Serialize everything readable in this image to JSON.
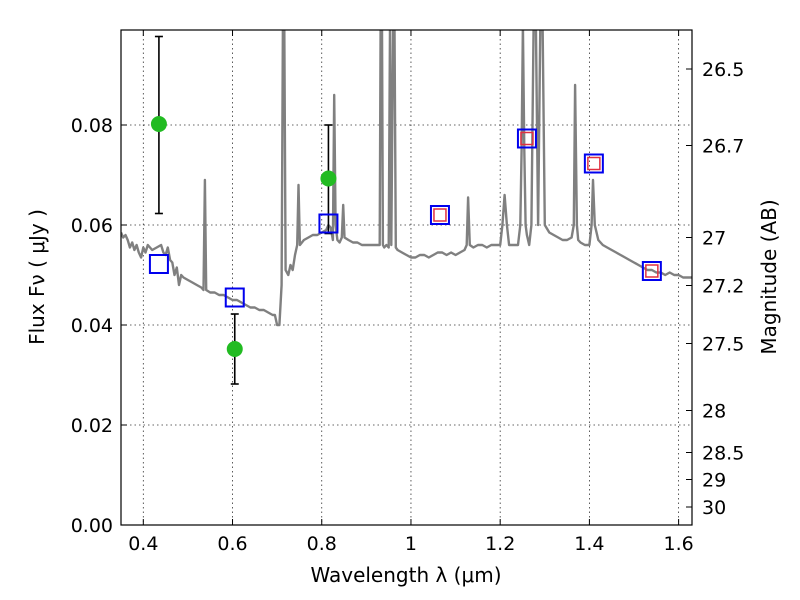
{
  "chart_data": {
    "type": "scatter",
    "xlabel": "Wavelength  λ (μm)",
    "ylabel": "Flux  Fν  ( μJy )",
    "ylabel_right": "Magnitude (AB)",
    "xlim": [
      0.35,
      1.63
    ],
    "ylim": [
      0.0,
      0.099
    ],
    "grid": true,
    "x_ticks": [
      {
        "value": 0.4,
        "label": "0.4"
      },
      {
        "value": 0.6,
        "label": "0.6"
      },
      {
        "value": 0.8,
        "label": "0.8"
      },
      {
        "value": 1.0,
        "label": "1"
      },
      {
        "value": 1.2,
        "label": "1.2"
      },
      {
        "value": 1.4,
        "label": "1.4"
      },
      {
        "value": 1.6,
        "label": "1.6"
      }
    ],
    "y_ticks": [
      {
        "value": 0.0,
        "label": "0.00"
      },
      {
        "value": 0.02,
        "label": "0.02"
      },
      {
        "value": 0.04,
        "label": "0.04"
      },
      {
        "value": 0.06,
        "label": "0.06"
      },
      {
        "value": 0.08,
        "label": "0.08"
      }
    ],
    "right_ticks": [
      {
        "flux": 0.0912,
        "label": "26.5"
      },
      {
        "flux": 0.0759,
        "label": "26.7"
      },
      {
        "flux": 0.0575,
        "label": "27"
      },
      {
        "flux": 0.0479,
        "label": "27.2"
      },
      {
        "flux": 0.0363,
        "label": "27.5"
      },
      {
        "flux": 0.0229,
        "label": "28"
      },
      {
        "flux": 0.0145,
        "label": "28.5"
      },
      {
        "flux": 0.0091,
        "label": "29"
      },
      {
        "flux": 0.0036,
        "label": "30"
      }
    ],
    "series": [
      {
        "kind": "line",
        "color": "#808080",
        "points": [
          [
            0.35,
            0.0585
          ],
          [
            0.355,
            0.0575
          ],
          [
            0.36,
            0.058
          ],
          [
            0.365,
            0.057
          ],
          [
            0.37,
            0.0555
          ],
          [
            0.375,
            0.0565
          ],
          [
            0.38,
            0.055
          ],
          [
            0.385,
            0.056
          ],
          [
            0.39,
            0.0545
          ],
          [
            0.395,
            0.0535
          ],
          [
            0.4,
            0.0555
          ],
          [
            0.405,
            0.0545
          ],
          [
            0.41,
            0.056
          ],
          [
            0.415,
            0.0555
          ],
          [
            0.42,
            0.055
          ],
          [
            0.43,
            0.0555
          ],
          [
            0.44,
            0.056
          ],
          [
            0.445,
            0.0545
          ],
          [
            0.45,
            0.054
          ],
          [
            0.455,
            0.0555
          ],
          [
            0.46,
            0.053
          ],
          [
            0.465,
            0.0525
          ],
          [
            0.47,
            0.05
          ],
          [
            0.475,
            0.0515
          ],
          [
            0.48,
            0.048
          ],
          [
            0.485,
            0.05
          ],
          [
            0.49,
            0.0495
          ],
          [
            0.5,
            0.049
          ],
          [
            0.51,
            0.0485
          ],
          [
            0.52,
            0.048
          ],
          [
            0.53,
            0.0475
          ],
          [
            0.535,
            0.047
          ],
          [
            0.538,
            0.069
          ],
          [
            0.541,
            0.047
          ],
          [
            0.55,
            0.0465
          ],
          [
            0.56,
            0.0465
          ],
          [
            0.57,
            0.046
          ],
          [
            0.58,
            0.046
          ],
          [
            0.59,
            0.0455
          ],
          [
            0.6,
            0.045
          ],
          [
            0.61,
            0.045
          ],
          [
            0.62,
            0.0445
          ],
          [
            0.63,
            0.044
          ],
          [
            0.64,
            0.0435
          ],
          [
            0.65,
            0.0435
          ],
          [
            0.66,
            0.043
          ],
          [
            0.67,
            0.043
          ],
          [
            0.68,
            0.0425
          ],
          [
            0.69,
            0.042
          ],
          [
            0.695,
            0.042
          ],
          [
            0.7,
            0.04
          ],
          [
            0.705,
            0.04
          ],
          [
            0.71,
            0.048
          ],
          [
            0.713,
            0.1
          ],
          [
            0.716,
            0.1
          ],
          [
            0.719,
            0.051
          ],
          [
            0.725,
            0.05
          ],
          [
            0.73,
            0.052
          ],
          [
            0.735,
            0.051
          ],
          [
            0.74,
            0.054
          ],
          [
            0.745,
            0.056
          ],
          [
            0.748,
            0.068
          ],
          [
            0.751,
            0.056
          ],
          [
            0.76,
            0.057
          ],
          [
            0.77,
            0.0575
          ],
          [
            0.78,
            0.058
          ],
          [
            0.79,
            0.058
          ],
          [
            0.8,
            0.0585
          ],
          [
            0.81,
            0.059
          ],
          [
            0.815,
            0.06
          ],
          [
            0.82,
            0.0595
          ],
          [
            0.825,
            0.057
          ],
          [
            0.828,
            0.086
          ],
          [
            0.831,
            0.06
          ],
          [
            0.835,
            0.057
          ],
          [
            0.84,
            0.0565
          ],
          [
            0.845,
            0.0575
          ],
          [
            0.848,
            0.064
          ],
          [
            0.851,
            0.0575
          ],
          [
            0.86,
            0.057
          ],
          [
            0.87,
            0.0565
          ],
          [
            0.88,
            0.0565
          ],
          [
            0.89,
            0.056
          ],
          [
            0.9,
            0.056
          ],
          [
            0.91,
            0.056
          ],
          [
            0.92,
            0.056
          ],
          [
            0.93,
            0.056
          ],
          [
            0.932,
            0.1
          ],
          [
            0.935,
            0.1
          ],
          [
            0.937,
            0.056
          ],
          [
            0.94,
            0.0555
          ],
          [
            0.945,
            0.056
          ],
          [
            0.95,
            0.0555
          ],
          [
            0.953,
            0.1
          ],
          [
            0.956,
            0.056
          ],
          [
            0.96,
            0.1
          ],
          [
            0.963,
            0.1
          ],
          [
            0.966,
            0.0555
          ],
          [
            0.97,
            0.055
          ],
          [
            0.98,
            0.0545
          ],
          [
            0.99,
            0.054
          ],
          [
            1.0,
            0.0535
          ],
          [
            1.01,
            0.0535
          ],
          [
            1.02,
            0.054
          ],
          [
            1.03,
            0.054
          ],
          [
            1.04,
            0.0535
          ],
          [
            1.05,
            0.054
          ],
          [
            1.06,
            0.0545
          ],
          [
            1.07,
            0.0545
          ],
          [
            1.08,
            0.054
          ],
          [
            1.09,
            0.0545
          ],
          [
            1.1,
            0.054
          ],
          [
            1.11,
            0.0545
          ],
          [
            1.12,
            0.055
          ],
          [
            1.125,
            0.056
          ],
          [
            1.128,
            0.0655
          ],
          [
            1.132,
            0.056
          ],
          [
            1.14,
            0.0555
          ],
          [
            1.15,
            0.056
          ],
          [
            1.16,
            0.056
          ],
          [
            1.17,
            0.0555
          ],
          [
            1.18,
            0.056
          ],
          [
            1.19,
            0.056
          ],
          [
            1.2,
            0.056
          ],
          [
            1.205,
            0.06
          ],
          [
            1.21,
            0.066
          ],
          [
            1.215,
            0.06
          ],
          [
            1.22,
            0.056
          ],
          [
            1.23,
            0.056
          ],
          [
            1.24,
            0.056
          ],
          [
            1.245,
            0.06
          ],
          [
            1.248,
            0.075
          ],
          [
            1.251,
            0.1
          ],
          [
            1.254,
            0.075
          ],
          [
            1.257,
            0.06
          ],
          [
            1.26,
            0.058
          ],
          [
            1.265,
            0.056
          ],
          [
            1.27,
            0.06
          ],
          [
            1.275,
            0.1
          ],
          [
            1.28,
            0.1
          ],
          [
            1.285,
            0.06
          ],
          [
            1.29,
            0.1
          ],
          [
            1.295,
            0.1
          ],
          [
            1.3,
            0.06
          ],
          [
            1.31,
            0.0585
          ],
          [
            1.32,
            0.058
          ],
          [
            1.33,
            0.0575
          ],
          [
            1.34,
            0.057
          ],
          [
            1.35,
            0.057
          ],
          [
            1.36,
            0.0575
          ],
          [
            1.365,
            0.06
          ],
          [
            1.368,
            0.088
          ],
          [
            1.372,
            0.06
          ],
          [
            1.375,
            0.057
          ],
          [
            1.38,
            0.0565
          ],
          [
            1.39,
            0.056
          ],
          [
            1.4,
            0.056
          ],
          [
            1.405,
            0.06
          ],
          [
            1.408,
            0.069
          ],
          [
            1.412,
            0.06
          ],
          [
            1.42,
            0.057
          ],
          [
            1.43,
            0.056
          ],
          [
            1.44,
            0.0555
          ],
          [
            1.45,
            0.055
          ],
          [
            1.46,
            0.0545
          ],
          [
            1.47,
            0.054
          ],
          [
            1.48,
            0.0535
          ],
          [
            1.49,
            0.053
          ],
          [
            1.5,
            0.0525
          ],
          [
            1.51,
            0.052
          ],
          [
            1.52,
            0.0515
          ],
          [
            1.53,
            0.051
          ],
          [
            1.54,
            0.051
          ],
          [
            1.55,
            0.0505
          ],
          [
            1.56,
            0.0505
          ],
          [
            1.57,
            0.05
          ],
          [
            1.58,
            0.0505
          ],
          [
            1.59,
            0.05
          ],
          [
            1.6,
            0.05
          ],
          [
            1.61,
            0.0495
          ],
          [
            1.62,
            0.0495
          ],
          [
            1.63,
            0.0495
          ]
        ]
      },
      {
        "kind": "errorbar",
        "color": "#22bb22",
        "points": [
          {
            "x": 0.435,
            "y": 0.0802,
            "ylo": 0.0623,
            "yhi": 0.0977
          },
          {
            "x": 0.605,
            "y": 0.0352,
            "ylo": 0.0282,
            "yhi": 0.0422
          },
          {
            "x": 0.815,
            "y": 0.0693,
            "ylo": 0.0583,
            "yhi": 0.08
          }
        ]
      },
      {
        "kind": "squares",
        "color": "#0000ee",
        "points": [
          [
            0.435,
            0.0522
          ],
          [
            0.605,
            0.0455
          ],
          [
            0.815,
            0.0603
          ],
          [
            1.065,
            0.062
          ],
          [
            1.26,
            0.0773
          ],
          [
            1.41,
            0.0723
          ],
          [
            1.54,
            0.0508
          ]
        ]
      },
      {
        "kind": "squares-small",
        "color": "#e03040",
        "points": [
          [
            1.065,
            0.062
          ],
          [
            1.26,
            0.0773
          ],
          [
            1.41,
            0.0723
          ],
          [
            1.54,
            0.0508
          ]
        ]
      }
    ]
  }
}
